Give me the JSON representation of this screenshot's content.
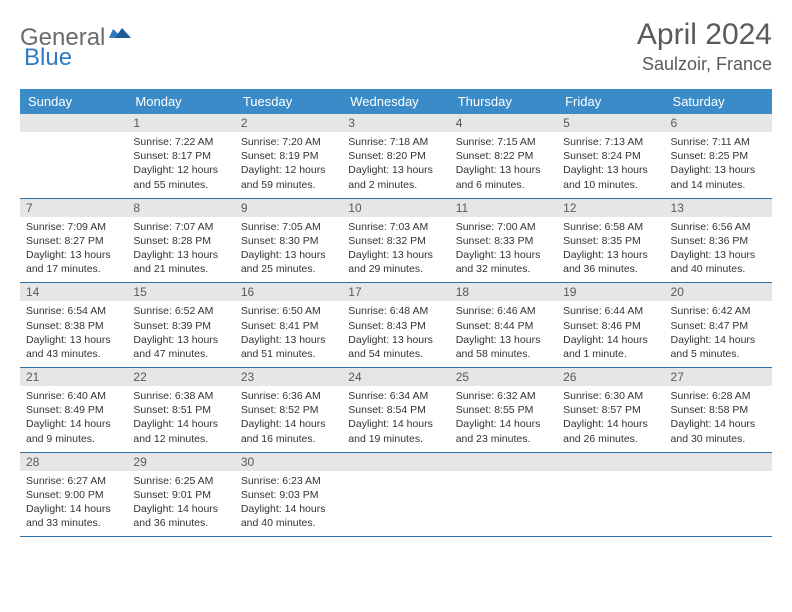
{
  "brand": {
    "part1": "General",
    "part2": "Blue"
  },
  "title": "April 2024",
  "location": "Saulzoir, France",
  "colors": {
    "header_bg": "#3b8bc9",
    "header_text": "#ffffff",
    "daynum_bg": "#e6e6e6",
    "daynum_text": "#5a5a5a",
    "row_border": "#2f6fa8",
    "brand_gray": "#6b6b6b",
    "brand_blue": "#2f7ac2"
  },
  "days_of_week": [
    "Sunday",
    "Monday",
    "Tuesday",
    "Wednesday",
    "Thursday",
    "Friday",
    "Saturday"
  ],
  "weeks": [
    [
      {
        "n": "",
        "sunrise": "",
        "sunset": "",
        "daylight1": "",
        "daylight2": ""
      },
      {
        "n": "1",
        "sunrise": "Sunrise: 7:22 AM",
        "sunset": "Sunset: 8:17 PM",
        "daylight1": "Daylight: 12 hours",
        "daylight2": "and 55 minutes."
      },
      {
        "n": "2",
        "sunrise": "Sunrise: 7:20 AM",
        "sunset": "Sunset: 8:19 PM",
        "daylight1": "Daylight: 12 hours",
        "daylight2": "and 59 minutes."
      },
      {
        "n": "3",
        "sunrise": "Sunrise: 7:18 AM",
        "sunset": "Sunset: 8:20 PM",
        "daylight1": "Daylight: 13 hours",
        "daylight2": "and 2 minutes."
      },
      {
        "n": "4",
        "sunrise": "Sunrise: 7:15 AM",
        "sunset": "Sunset: 8:22 PM",
        "daylight1": "Daylight: 13 hours",
        "daylight2": "and 6 minutes."
      },
      {
        "n": "5",
        "sunrise": "Sunrise: 7:13 AM",
        "sunset": "Sunset: 8:24 PM",
        "daylight1": "Daylight: 13 hours",
        "daylight2": "and 10 minutes."
      },
      {
        "n": "6",
        "sunrise": "Sunrise: 7:11 AM",
        "sunset": "Sunset: 8:25 PM",
        "daylight1": "Daylight: 13 hours",
        "daylight2": "and 14 minutes."
      }
    ],
    [
      {
        "n": "7",
        "sunrise": "Sunrise: 7:09 AM",
        "sunset": "Sunset: 8:27 PM",
        "daylight1": "Daylight: 13 hours",
        "daylight2": "and 17 minutes."
      },
      {
        "n": "8",
        "sunrise": "Sunrise: 7:07 AM",
        "sunset": "Sunset: 8:28 PM",
        "daylight1": "Daylight: 13 hours",
        "daylight2": "and 21 minutes."
      },
      {
        "n": "9",
        "sunrise": "Sunrise: 7:05 AM",
        "sunset": "Sunset: 8:30 PM",
        "daylight1": "Daylight: 13 hours",
        "daylight2": "and 25 minutes."
      },
      {
        "n": "10",
        "sunrise": "Sunrise: 7:03 AM",
        "sunset": "Sunset: 8:32 PM",
        "daylight1": "Daylight: 13 hours",
        "daylight2": "and 29 minutes."
      },
      {
        "n": "11",
        "sunrise": "Sunrise: 7:00 AM",
        "sunset": "Sunset: 8:33 PM",
        "daylight1": "Daylight: 13 hours",
        "daylight2": "and 32 minutes."
      },
      {
        "n": "12",
        "sunrise": "Sunrise: 6:58 AM",
        "sunset": "Sunset: 8:35 PM",
        "daylight1": "Daylight: 13 hours",
        "daylight2": "and 36 minutes."
      },
      {
        "n": "13",
        "sunrise": "Sunrise: 6:56 AM",
        "sunset": "Sunset: 8:36 PM",
        "daylight1": "Daylight: 13 hours",
        "daylight2": "and 40 minutes."
      }
    ],
    [
      {
        "n": "14",
        "sunrise": "Sunrise: 6:54 AM",
        "sunset": "Sunset: 8:38 PM",
        "daylight1": "Daylight: 13 hours",
        "daylight2": "and 43 minutes."
      },
      {
        "n": "15",
        "sunrise": "Sunrise: 6:52 AM",
        "sunset": "Sunset: 8:39 PM",
        "daylight1": "Daylight: 13 hours",
        "daylight2": "and 47 minutes."
      },
      {
        "n": "16",
        "sunrise": "Sunrise: 6:50 AM",
        "sunset": "Sunset: 8:41 PM",
        "daylight1": "Daylight: 13 hours",
        "daylight2": "and 51 minutes."
      },
      {
        "n": "17",
        "sunrise": "Sunrise: 6:48 AM",
        "sunset": "Sunset: 8:43 PM",
        "daylight1": "Daylight: 13 hours",
        "daylight2": "and 54 minutes."
      },
      {
        "n": "18",
        "sunrise": "Sunrise: 6:46 AM",
        "sunset": "Sunset: 8:44 PM",
        "daylight1": "Daylight: 13 hours",
        "daylight2": "and 58 minutes."
      },
      {
        "n": "19",
        "sunrise": "Sunrise: 6:44 AM",
        "sunset": "Sunset: 8:46 PM",
        "daylight1": "Daylight: 14 hours",
        "daylight2": "and 1 minute."
      },
      {
        "n": "20",
        "sunrise": "Sunrise: 6:42 AM",
        "sunset": "Sunset: 8:47 PM",
        "daylight1": "Daylight: 14 hours",
        "daylight2": "and 5 minutes."
      }
    ],
    [
      {
        "n": "21",
        "sunrise": "Sunrise: 6:40 AM",
        "sunset": "Sunset: 8:49 PM",
        "daylight1": "Daylight: 14 hours",
        "daylight2": "and 9 minutes."
      },
      {
        "n": "22",
        "sunrise": "Sunrise: 6:38 AM",
        "sunset": "Sunset: 8:51 PM",
        "daylight1": "Daylight: 14 hours",
        "daylight2": "and 12 minutes."
      },
      {
        "n": "23",
        "sunrise": "Sunrise: 6:36 AM",
        "sunset": "Sunset: 8:52 PM",
        "daylight1": "Daylight: 14 hours",
        "daylight2": "and 16 minutes."
      },
      {
        "n": "24",
        "sunrise": "Sunrise: 6:34 AM",
        "sunset": "Sunset: 8:54 PM",
        "daylight1": "Daylight: 14 hours",
        "daylight2": "and 19 minutes."
      },
      {
        "n": "25",
        "sunrise": "Sunrise: 6:32 AM",
        "sunset": "Sunset: 8:55 PM",
        "daylight1": "Daylight: 14 hours",
        "daylight2": "and 23 minutes."
      },
      {
        "n": "26",
        "sunrise": "Sunrise: 6:30 AM",
        "sunset": "Sunset: 8:57 PM",
        "daylight1": "Daylight: 14 hours",
        "daylight2": "and 26 minutes."
      },
      {
        "n": "27",
        "sunrise": "Sunrise: 6:28 AM",
        "sunset": "Sunset: 8:58 PM",
        "daylight1": "Daylight: 14 hours",
        "daylight2": "and 30 minutes."
      }
    ],
    [
      {
        "n": "28",
        "sunrise": "Sunrise: 6:27 AM",
        "sunset": "Sunset: 9:00 PM",
        "daylight1": "Daylight: 14 hours",
        "daylight2": "and 33 minutes."
      },
      {
        "n": "29",
        "sunrise": "Sunrise: 6:25 AM",
        "sunset": "Sunset: 9:01 PM",
        "daylight1": "Daylight: 14 hours",
        "daylight2": "and 36 minutes."
      },
      {
        "n": "30",
        "sunrise": "Sunrise: 6:23 AM",
        "sunset": "Sunset: 9:03 PM",
        "daylight1": "Daylight: 14 hours",
        "daylight2": "and 40 minutes."
      },
      {
        "n": "",
        "sunrise": "",
        "sunset": "",
        "daylight1": "",
        "daylight2": ""
      },
      {
        "n": "",
        "sunrise": "",
        "sunset": "",
        "daylight1": "",
        "daylight2": ""
      },
      {
        "n": "",
        "sunrise": "",
        "sunset": "",
        "daylight1": "",
        "daylight2": ""
      },
      {
        "n": "",
        "sunrise": "",
        "sunset": "",
        "daylight1": "",
        "daylight2": ""
      }
    ]
  ]
}
